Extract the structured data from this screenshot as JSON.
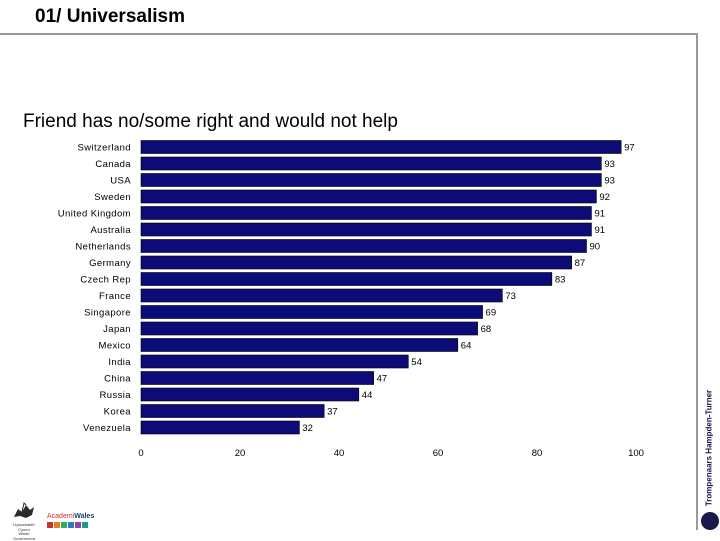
{
  "slide": {
    "title": "01/ Universalism"
  },
  "logos": {
    "gov_caption": [
      "Llywodraeth Cymru",
      "Welsh Government"
    ],
    "academi_part1": "Academi",
    "academi_part2": "Wales",
    "side_brand": "Trompenaars Hampden-Turner"
  },
  "colors": {
    "bar": "#0c0c78",
    "bar_edge": "#000000",
    "frame": "#9a9a9a",
    "academi_blocks": [
      "#c0392b",
      "#e67e22",
      "#27ae60",
      "#2980b9",
      "#8e44ad",
      "#16a085"
    ]
  },
  "chart_data": {
    "type": "bar",
    "orientation": "horizontal",
    "title": "Friend has no/some right and would not help",
    "categories": [
      "Switzerland",
      "Canada",
      "USA",
      "Sweden",
      "United Kingdom",
      "Australia",
      "Netherlands",
      "Germany",
      "Czech Rep",
      "France",
      "Singapore",
      "Japan",
      "Mexico",
      "India",
      "China",
      "Russia",
      "Korea",
      "Venezuela"
    ],
    "values": [
      97,
      93,
      93,
      92,
      91,
      91,
      90,
      87,
      83,
      73,
      69,
      68,
      64,
      54,
      47,
      44,
      37,
      32
    ],
    "xlim": [
      0,
      100
    ],
    "xticks": [
      0,
      20,
      40,
      60,
      80,
      100
    ],
    "grid": false,
    "legend": "none"
  }
}
